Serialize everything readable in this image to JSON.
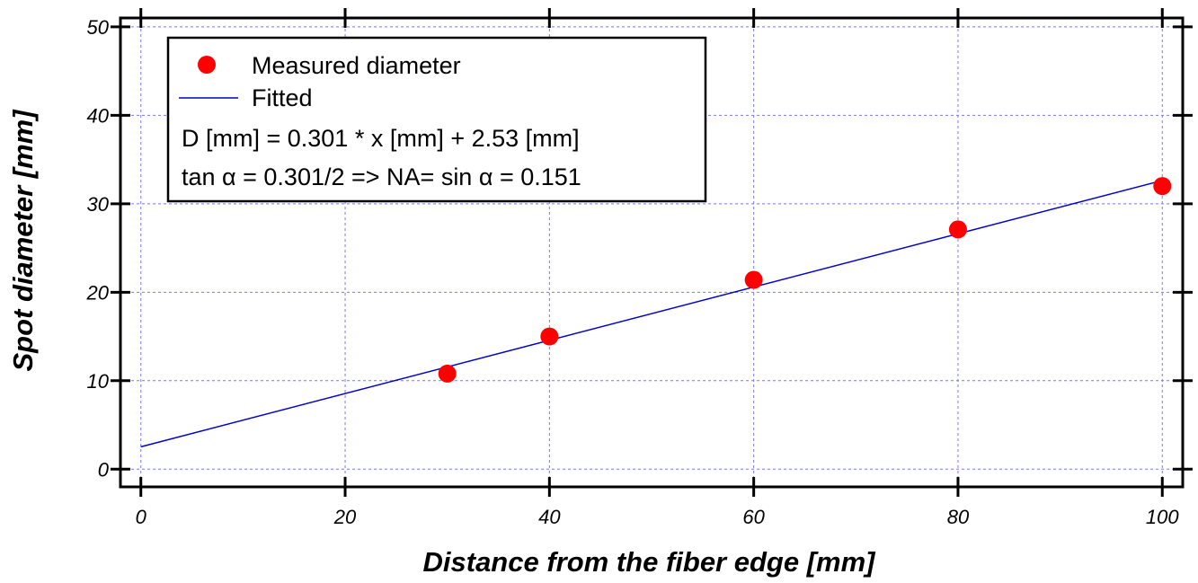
{
  "chart_data": {
    "type": "scatter",
    "xlabel": "Distance from the fiber edge [mm]",
    "ylabel": "Spot diameter [mm]",
    "xlim": [
      -2,
      102
    ],
    "ylim": [
      -2,
      51
    ],
    "x_ticks": [
      0,
      20,
      40,
      60,
      80,
      100
    ],
    "y_ticks": [
      0,
      10,
      20,
      30,
      40,
      50
    ],
    "grid": true,
    "legend_position": "top-left",
    "series": [
      {
        "name": "Measured diameter",
        "kind": "scatter",
        "color": "#ff0000",
        "x": [
          30,
          40,
          60,
          80,
          100
        ],
        "y": [
          10.8,
          15.0,
          21.4,
          27.1,
          32.0
        ]
      },
      {
        "name": "Fitted",
        "kind": "line",
        "color": "#0000cc",
        "x": [
          0,
          100
        ],
        "y": [
          2.53,
          32.63
        ]
      }
    ],
    "annotations": [
      "D [mm] = 0.301 * x [mm] + 2.53 [mm]",
      "tan α = 0.301/2 => NA= sin α = 0.151"
    ]
  },
  "colors": {
    "grid": "#7b7bdc",
    "frame": "#000000",
    "background": "#ffffff"
  }
}
